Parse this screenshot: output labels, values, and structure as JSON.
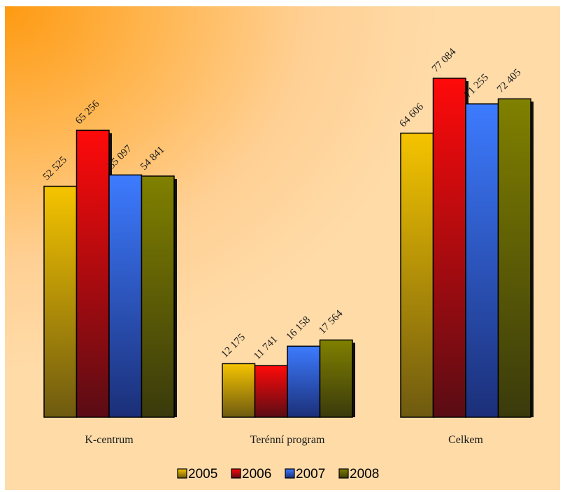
{
  "chart_data": {
    "type": "bar",
    "categories": [
      "K-centrum",
      "Terénní program",
      "Celkem"
    ],
    "series": [
      {
        "name": "2005",
        "color": "#f5c400",
        "values": [
          52525,
          12175,
          64606
        ]
      },
      {
        "name": "2006",
        "color": "#ff0a0a",
        "values": [
          65256,
          11741,
          77084
        ]
      },
      {
        "name": "2007",
        "color": "#3d7bff",
        "values": [
          55097,
          16158,
          71255
        ]
      },
      {
        "name": "2008",
        "color": "#808000",
        "values": [
          54841,
          17564,
          72405
        ]
      }
    ],
    "value_labels": [
      [
        "52 525",
        "12 175",
        "64 606"
      ],
      [
        "65 256",
        "11 741",
        "77 084"
      ],
      [
        "55 097",
        "16 158",
        "71 255"
      ],
      [
        "54 841",
        "17 564",
        "72 405"
      ]
    ],
    "title": "",
    "xlabel": "",
    "ylabel": "",
    "ylim": [
      0,
      80000
    ],
    "grid": false,
    "legend": "bottom"
  }
}
